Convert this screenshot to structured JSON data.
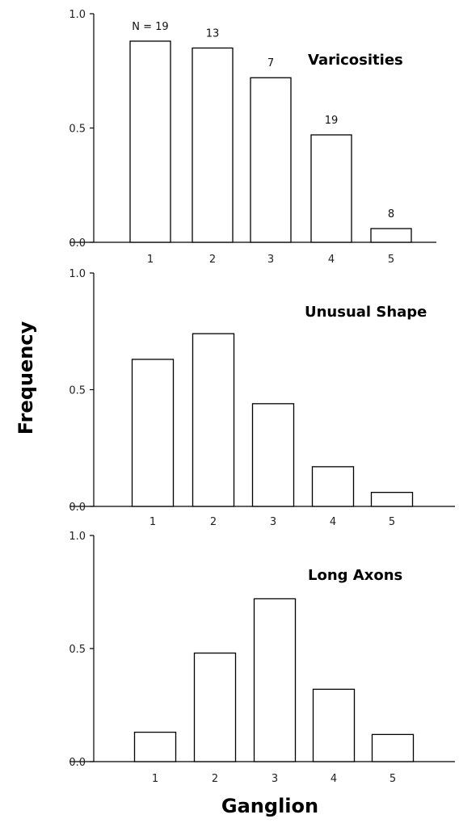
{
  "chart_data": {
    "type": "bar",
    "xlabel": "Ganglion",
    "ylabel": "Frequency",
    "panels": [
      {
        "title": "Varicosities",
        "categories": [
          "1",
          "2",
          "3",
          "4",
          "5"
        ],
        "values": [
          0.88,
          0.85,
          0.72,
          0.47,
          0.06
        ],
        "bar_labels": [
          "N = 19",
          "13",
          "7",
          "19",
          "8"
        ],
        "ylim": [
          0,
          1.0
        ],
        "yticks": [
          "0.0",
          "0.5",
          "1.0"
        ]
      },
      {
        "title": "Unusual Shape",
        "categories": [
          "1",
          "2",
          "3",
          "4",
          "5"
        ],
        "values": [
          0.63,
          0.74,
          0.44,
          0.17,
          0.06
        ],
        "ylim": [
          0,
          1.0
        ],
        "yticks": [
          "0.0",
          "0.5",
          "1.0"
        ]
      },
      {
        "title": "Long Axons",
        "categories": [
          "1",
          "2",
          "3",
          "4",
          "5"
        ],
        "values": [
          0.13,
          0.48,
          0.72,
          0.32,
          0.12
        ],
        "ylim": [
          0,
          1.0
        ],
        "yticks": [
          "0.0",
          "0.5",
          "1.0"
        ]
      }
    ]
  }
}
